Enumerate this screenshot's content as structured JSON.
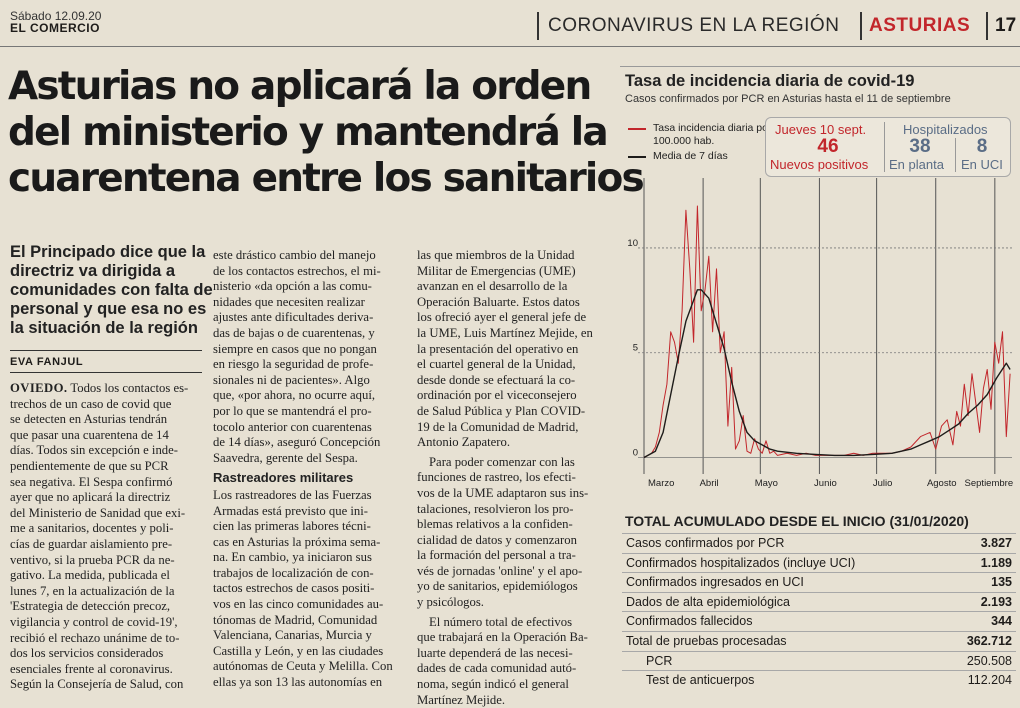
{
  "header": {
    "date": "Sábado 12.09.20",
    "paper": "EL COMERCIO",
    "section": "CORONAVIRUS EN LA REGIÓN",
    "region": "ASTURIAS",
    "page": "17"
  },
  "article": {
    "headline_lines": [
      "Asturias no aplicará la orden",
      "del ministerio y mantendrá la",
      "cuarentena entre los sanitarios"
    ],
    "subhead_lines": [
      "El Principado dice que la",
      "directriz va dirigida a",
      "comunidades con falta de",
      "personal y que esa no es",
      "la situación de la región"
    ],
    "byline": "EVA FANJUL",
    "col1": [
      "OVIEDO. Todos los contactos es-",
      "trechos de un caso de covid que",
      "se detecten en Asturias tendrán",
      "que pasar una cuarentena de 14",
      "días. Todos sin excepción e inde-",
      "pendientemente de que su PCR",
      "sea negativa. El Sespa confirmó",
      "ayer que no aplicará la directriz",
      "del Ministerio de Sanidad que exi-",
      "me a sanitarios, docentes y poli-",
      "cías de guardar aislamiento pre-",
      "ventivo, si la prueba PCR da ne-",
      "gativo. La medida, publicada el",
      "lunes 7, en la actualización de la",
      "'Estrategia de detección precoz,",
      "vigilancia y control de covid-19',",
      "recibió el rechazo unánime de to-",
      "dos los servicios considerados",
      "esenciales frente al coronavirus.",
      "Según la Consejería de Salud, con"
    ],
    "col2a": [
      "este drástico cambio del manejo",
      "de los contactos estrechos, el mi-",
      "nisterio «da opción a las comu-",
      "nidades que necesiten realizar",
      "ajustes ante dificultades deriva-",
      "das de bajas o de cuarentenas, y",
      "siempre en casos que no pongan",
      "en riesgo la seguridad de profe-",
      "sionales ni de pacientes». Algo",
      "que, «por ahora, no ocurre aquí,",
      "por lo que se mantendrá el pro-",
      "tocolo anterior con cuarentenas",
      "de 14 días», aseguró Concepción",
      "Saavedra, gerente del Sespa."
    ],
    "col2_subhead": "Rastreadores militares",
    "col2b": [
      "Los rastreadores de las Fuerzas",
      "Armadas está previsto que ini-",
      "cien las primeras labores técni-",
      "cas en Asturias la próxima sema-",
      "na. En cambio, ya iniciaron sus",
      "trabajos de localización de con-",
      "tactos estrechos de casos positi-",
      "vos en las cinco comunidades au-",
      "tónomas de Madrid, Comunidad",
      "Valenciana, Canarias, Murcia y",
      "Castilla y León, y en las ciudades",
      "autónomas de Ceuta y Melilla. Con",
      "ellas ya son 13 las autonomías en"
    ],
    "col3a": [
      "las que miembros de la Unidad",
      "Militar de Emergencias (UME)",
      "avanzan en el desarrollo de la",
      "Operación Baluarte. Estos datos",
      "los ofreció ayer el general jefe de",
      "la UME, Luis Martínez Mejide, en",
      "la presentación del operativo en",
      "el cuartel general de la Unidad,",
      "desde donde se efectuará la co-",
      "ordinación por el viceconsejero",
      "de Salud Pública y Plan COVID-",
      "19 de la Comunidad de Madrid,",
      "Antonio Zapatero."
    ],
    "col3b": [
      "Para poder comenzar con las",
      "funciones de rastreo, los efecti-",
      "vos de la UME adaptaron sus ins-",
      "talaciones, resolvieron los pro-",
      "blemas relativos a la confiden-",
      "cialidad de datos y comenzaron",
      "la formación del personal a tra-",
      "vés de jornadas 'online' y el apo-",
      "yo de sanitarios, epidemiólogos",
      "y psicólogos."
    ],
    "col3c": [
      "El número total de efectivos",
      "que trabajará en la Operación Ba-",
      "luarte dependerá de las necesi-",
      "dades de cada comunidad autó-",
      "noma, según indicó el general",
      "Martínez Mejide."
    ]
  },
  "stats": {
    "day": "Jueves 10 sept.",
    "new_positive": "46",
    "new_positive_label": "Nuevos positivos",
    "hospital_label": "Hospitalizados",
    "ward": "38",
    "ward_label": "En planta",
    "icu": "8",
    "icu_label": "En UCI"
  },
  "colors": {
    "daily": "#c2262b",
    "average": "#1e1c1a",
    "accent_blue": "#5a6d86"
  },
  "chart_data": {
    "type": "line",
    "title": "Tasa de incidencia diaria de covid-19",
    "subtitle": "Casos confirmados por PCR en Asturias hasta el 11 de septiembre",
    "xlabel": "",
    "ylabel": "",
    "x_ticks": [
      "Marzo",
      "Abril",
      "Mayo",
      "Junio",
      "Julio",
      "Agosto",
      "Septiembre"
    ],
    "y_ticks": [
      "0",
      "5",
      "10"
    ],
    "ylim": [
      -0.5,
      12
    ],
    "xlim": [
      0,
      193
    ],
    "grid": true,
    "legend": "top-left",
    "series": [
      {
        "name": "Tasa incidencia diaria por 100.000 hab.",
        "x": [
          0,
          4,
          6,
          8,
          10,
          12,
          14,
          16,
          18,
          20,
          22,
          24,
          26,
          28,
          30,
          32,
          34,
          36,
          38,
          40,
          42,
          44,
          46,
          48,
          50,
          52,
          54,
          56,
          58,
          60,
          62,
          64,
          66,
          68,
          70,
          75,
          80,
          85,
          90,
          95,
          100,
          105,
          110,
          115,
          120,
          125,
          130,
          135,
          140,
          145,
          150,
          153,
          156,
          159,
          162,
          164,
          166,
          168,
          170,
          172,
          174,
          176,
          178,
          180,
          182,
          184,
          186,
          188,
          190,
          192
        ],
        "values": [
          0,
          0.2,
          0.5,
          1.2,
          2.5,
          3.5,
          6,
          5.5,
          4.5,
          7,
          11.8,
          9,
          5.5,
          12,
          7,
          8,
          9.6,
          6,
          9,
          5,
          6,
          1.5,
          4.3,
          0.4,
          0.8,
          2,
          0.3,
          0.2,
          0.9,
          0.4,
          0.2,
          0.8,
          0.2,
          0.3,
          0.1,
          0.2,
          0.1,
          0.2,
          0.1,
          0.1,
          0.1,
          0.1,
          0.2,
          0.1,
          0.2,
          0.2,
          0.2,
          0.3,
          0.5,
          1,
          1.2,
          0.4,
          1.5,
          1.8,
          0.6,
          2.2,
          1.5,
          3.5,
          2,
          4,
          2.6,
          1.2,
          3.3,
          4.2,
          2.3,
          5.5,
          4.5,
          6,
          1,
          4
        ]
      },
      {
        "name": "Media de 7 días",
        "x": [
          0,
          6,
          10,
          14,
          18,
          22,
          26,
          28,
          30,
          34,
          38,
          42,
          46,
          50,
          54,
          58,
          62,
          66,
          70,
          80,
          90,
          100,
          110,
          120,
          130,
          140,
          145,
          150,
          155,
          160,
          165,
          170,
          175,
          180,
          185,
          190,
          192
        ],
        "values": [
          0,
          0.3,
          1.2,
          3,
          4.8,
          6.5,
          7.5,
          8,
          8,
          7.6,
          6.4,
          5.2,
          3.6,
          2.2,
          1.2,
          0.8,
          0.6,
          0.4,
          0.3,
          0.2,
          0.15,
          0.1,
          0.1,
          0.15,
          0.2,
          0.4,
          0.6,
          0.8,
          1,
          1.3,
          1.6,
          2.1,
          2.5,
          3,
          3.8,
          4.5,
          4.2
        ]
      }
    ]
  },
  "table": {
    "title": "TOTAL ACUMULADO DESDE EL INICIO (31/01/2020)",
    "rows": [
      {
        "label": "Casos confirmados por PCR",
        "value": "3.827"
      },
      {
        "label": "Confirmados hospitalizados (incluye UCI)",
        "value": "1.189"
      },
      {
        "label": "Confirmados ingresados en UCI",
        "value": "135"
      },
      {
        "label": "Dados de alta epidemiológica",
        "value": "2.193"
      },
      {
        "label": "Confirmados fallecidos",
        "value": "344"
      },
      {
        "label": "Total de pruebas procesadas",
        "value": "362.712"
      },
      {
        "label": "PCR",
        "value": "250.508",
        "sub": true
      },
      {
        "label": "Test de anticuerpos",
        "value": "112.204",
        "sub": true
      }
    ]
  }
}
